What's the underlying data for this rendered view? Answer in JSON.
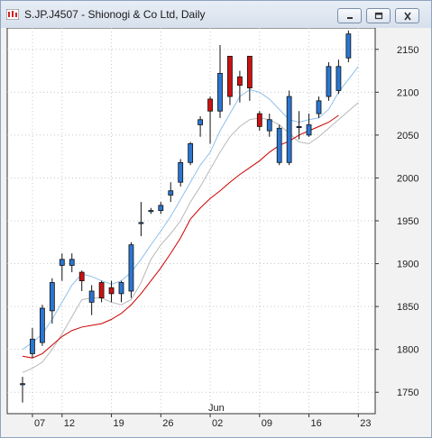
{
  "window": {
    "title": "S.JP.J4507 - Shionogi & Co Ltd, Daily"
  },
  "chart_data": {
    "type": "candlestick",
    "title": "",
    "ylim": [
      1725,
      2175
    ],
    "y_ticks": [
      1750,
      1800,
      1850,
      1900,
      1950,
      2000,
      2050,
      2100,
      2150
    ],
    "x_ticks": [
      {
        "label": "07",
        "index": 1
      },
      {
        "label": "12",
        "index": 4
      },
      {
        "label": "19",
        "index": 9
      },
      {
        "label": "26",
        "index": 14
      },
      {
        "label": "02",
        "index": 19
      },
      {
        "label": "09",
        "index": 24
      },
      {
        "label": "16",
        "index": 29
      },
      {
        "label": "23",
        "index": 34
      }
    ],
    "month_label": {
      "label": "Jun",
      "index": 19
    },
    "candles": [
      {
        "o": 1760,
        "h": 1768,
        "l": 1738,
        "c": 1760
      },
      {
        "o": 1795,
        "h": 1825,
        "l": 1790,
        "c": 1812
      },
      {
        "o": 1808,
        "h": 1852,
        "l": 1804,
        "c": 1848
      },
      {
        "o": 1845,
        "h": 1883,
        "l": 1830,
        "c": 1878
      },
      {
        "o": 1898,
        "h": 1912,
        "l": 1880,
        "c": 1905
      },
      {
        "o": 1898,
        "h": 1912,
        "l": 1890,
        "c": 1905
      },
      {
        "o": 1890,
        "h": 1892,
        "l": 1868,
        "c": 1880
      },
      {
        "o": 1855,
        "h": 1875,
        "l": 1840,
        "c": 1868
      },
      {
        "o": 1878,
        "h": 1880,
        "l": 1855,
        "c": 1860
      },
      {
        "o": 1872,
        "h": 1880,
        "l": 1855,
        "c": 1865
      },
      {
        "o": 1865,
        "h": 1880,
        "l": 1855,
        "c": 1878
      },
      {
        "o": 1868,
        "h": 1925,
        "l": 1860,
        "c": 1922
      },
      {
        "o": 1948,
        "h": 1972,
        "l": 1932,
        "c": 1948
      },
      {
        "o": 1962,
        "h": 1965,
        "l": 1958,
        "c": 1962
      },
      {
        "o": 1962,
        "h": 1972,
        "l": 1958,
        "c": 1968
      },
      {
        "o": 1980,
        "h": 1995,
        "l": 1972,
        "c": 1985
      },
      {
        "o": 1995,
        "h": 2022,
        "l": 1990,
        "c": 2018
      },
      {
        "o": 2018,
        "h": 2042,
        "l": 2015,
        "c": 2040
      },
      {
        "o": 2062,
        "h": 2072,
        "l": 2048,
        "c": 2068
      },
      {
        "o": 2092,
        "h": 2095,
        "l": 2040,
        "c": 2078
      },
      {
        "o": 2078,
        "h": 2155,
        "l": 2070,
        "c": 2122
      },
      {
        "o": 2142,
        "h": 2142,
        "l": 2085,
        "c": 2095
      },
      {
        "o": 2118,
        "h": 2125,
        "l": 2088,
        "c": 2108
      },
      {
        "o": 2142,
        "h": 2142,
        "l": 2090,
        "c": 2105
      },
      {
        "o": 2075,
        "h": 2078,
        "l": 2055,
        "c": 2060
      },
      {
        "o": 2055,
        "h": 2075,
        "l": 2048,
        "c": 2068
      },
      {
        "o": 2018,
        "h": 2062,
        "l": 2015,
        "c": 2058
      },
      {
        "o": 2018,
        "h": 2102,
        "l": 2015,
        "c": 2095
      },
      {
        "o": 2060,
        "h": 2078,
        "l": 2045,
        "c": 2060
      },
      {
        "o": 2050,
        "h": 2075,
        "l": 2048,
        "c": 2062
      },
      {
        "o": 2075,
        "h": 2095,
        "l": 2070,
        "c": 2090
      },
      {
        "o": 2095,
        "h": 2135,
        "l": 2090,
        "c": 2130
      },
      {
        "o": 2102,
        "h": 2138,
        "l": 2098,
        "c": 2130
      },
      {
        "o": 2140,
        "h": 2172,
        "l": 2135,
        "c": 2168
      }
    ],
    "series": [
      {
        "color": "#8fc0ea",
        "values": [
          1800,
          1808,
          1818,
          1835,
          1855,
          1875,
          1888,
          1885,
          1880,
          1876,
          1880,
          1890,
          1905,
          1922,
          1938,
          1955,
          1975,
          1995,
          2015,
          2030,
          2055,
          2075,
          2095,
          2103,
          2100,
          2092,
          2080,
          2068,
          2065,
          2068,
          2070,
          2080,
          2100,
          2115,
          2130
        ]
      },
      {
        "color": "#b8b8b8",
        "values": [
          1773,
          1778,
          1785,
          1800,
          1818,
          1838,
          1858,
          1860,
          1860,
          1855,
          1852,
          1858,
          1878,
          1905,
          1922,
          1935,
          1950,
          1972,
          1990,
          2010,
          2030,
          2048,
          2060,
          2068,
          2070,
          2068,
          2062,
          2052,
          2042,
          2040,
          2048,
          2058,
          2068,
          2078,
          2088
        ]
      },
      {
        "color": "#cc0000",
        "values": [
          1792,
          1790,
          1795,
          1805,
          1815,
          1822,
          1826,
          1828,
          1830,
          1835,
          1842,
          1852,
          1865,
          1880,
          1895,
          1912,
          1930,
          1952,
          1965,
          1976,
          1985,
          1995,
          2004,
          2012,
          2020,
          2030,
          2038,
          2043,
          2050,
          2055,
          2060,
          2065,
          2073
        ]
      }
    ]
  }
}
